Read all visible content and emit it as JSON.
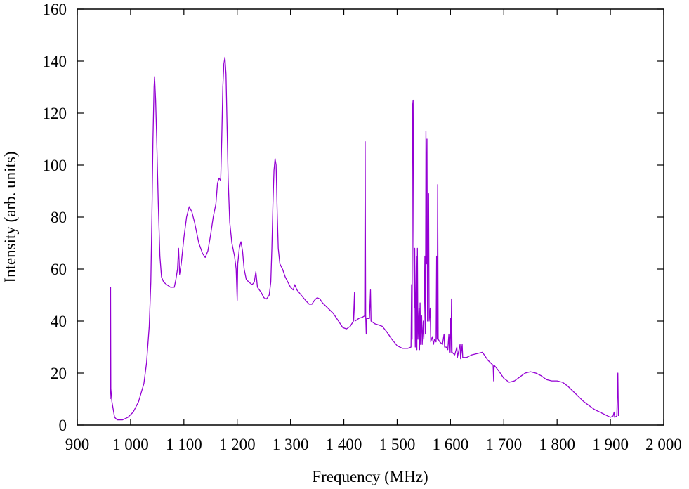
{
  "chart_data": {
    "type": "line",
    "xlabel": "Frequency (MHz)",
    "ylabel": "Intensity (arb. units)",
    "color": "#9400d3",
    "xlim": [
      900,
      2000
    ],
    "ylim": [
      0,
      160
    ],
    "xticks": [
      900,
      {
        "value": 1000,
        "label": "1 000"
      },
      {
        "value": 1100,
        "label": "1 100"
      },
      {
        "value": 1200,
        "label": "1 200"
      },
      {
        "value": 1300,
        "label": "1 300"
      },
      {
        "value": 1400,
        "label": "1 400"
      },
      {
        "value": 1500,
        "label": "1 500"
      },
      {
        "value": 1600,
        "label": "1 600"
      },
      {
        "value": 1700,
        "label": "1 700"
      },
      {
        "value": 1800,
        "label": "1 800"
      },
      {
        "value": 1900,
        "label": "1 900"
      },
      {
        "value": 2000,
        "label": "2 000"
      }
    ],
    "yticks": [
      0,
      20,
      40,
      60,
      80,
      100,
      120,
      140,
      160
    ],
    "x": [
      962,
      962.5,
      963,
      965,
      970,
      975,
      985,
      995,
      1005,
      1015,
      1025,
      1030,
      1035,
      1038,
      1040,
      1042,
      1044,
      1045,
      1047,
      1049,
      1052,
      1055,
      1058,
      1062,
      1068,
      1075,
      1082,
      1085,
      1088,
      1090,
      1092,
      1095,
      1100,
      1105,
      1110,
      1115,
      1120,
      1128,
      1135,
      1140,
      1145,
      1150,
      1155,
      1160,
      1163,
      1166,
      1169,
      1171,
      1173,
      1175,
      1177,
      1179,
      1181,
      1183,
      1186,
      1190,
      1195,
      1198,
      1200,
      1201,
      1204,
      1207,
      1210,
      1213,
      1217,
      1222,
      1228,
      1232,
      1235,
      1238,
      1245,
      1250,
      1255,
      1260,
      1263,
      1265,
      1267,
      1269,
      1271,
      1273,
      1275,
      1277,
      1280,
      1285,
      1290,
      1295,
      1300,
      1305,
      1308,
      1312,
      1320,
      1328,
      1335,
      1340,
      1345,
      1350,
      1355,
      1360,
      1370,
      1380,
      1390,
      1398,
      1405,
      1412,
      1418,
      1420,
      1421,
      1428,
      1435,
      1439,
      1440,
      1441,
      1442,
      1443,
      1448,
      1450,
      1451,
      1458,
      1465,
      1472,
      1480,
      1490,
      1500,
      1510,
      1520,
      1526,
      1527,
      1528,
      1529,
      1530,
      1531,
      1532,
      1533,
      1534,
      1536,
      1537,
      1538,
      1539,
      1541,
      1542,
      1543,
      1544,
      1546,
      1547,
      1549,
      1550,
      1552,
      1553,
      1554,
      1555,
      1556,
      1557,
      1559,
      1560,
      1562,
      1563,
      1566,
      1568,
      1570,
      1573,
      1574,
      1575,
      1576,
      1577,
      1580,
      1585,
      1588,
      1589,
      1592,
      1595,
      1597,
      1598,
      1600,
      1601,
      1602,
      1603,
      1608,
      1612,
      1613,
      1618,
      1619,
      1622,
      1623,
      1630,
      1640,
      1650,
      1660,
      1670,
      1680,
      1681,
      1682,
      1690,
      1700,
      1710,
      1720,
      1730,
      1740,
      1750,
      1760,
      1770,
      1780,
      1790,
      1800,
      1810,
      1820,
      1830,
      1840,
      1850,
      1860,
      1870,
      1880,
      1890,
      1900,
      1905,
      1907,
      1908,
      1912,
      1914,
      1915
    ],
    "values": [
      10,
      53,
      14,
      9,
      3,
      2,
      2,
      3,
      5,
      9,
      16,
      24,
      38,
      55,
      80,
      110,
      130,
      134,
      125,
      110,
      85,
      65,
      57,
      55,
      54,
      53,
      53,
      56,
      60,
      68,
      58,
      62,
      72,
      80,
      84,
      82,
      78,
      70,
      66,
      64.5,
      67,
      73,
      80,
      85,
      93,
      95,
      94,
      110,
      130,
      139,
      141.5,
      135,
      115,
      95,
      78,
      70,
      65,
      60,
      48,
      62,
      68,
      70.5,
      67,
      60,
      56,
      55,
      54,
      55,
      59,
      53,
      51,
      49,
      48.5,
      50,
      55,
      68,
      85,
      98,
      102.5,
      100,
      82,
      68,
      62,
      60,
      57,
      55,
      53,
      52,
      54,
      52,
      50,
      48,
      46.5,
      46.5,
      48,
      49,
      48.5,
      47,
      45,
      43,
      40,
      37.5,
      37,
      38,
      40,
      51,
      40,
      41,
      41.5,
      42,
      109,
      42,
      35,
      41,
      41,
      52,
      40,
      39,
      38.5,
      38,
      36,
      33,
      30.5,
      29.5,
      29.5,
      30,
      54,
      33,
      123,
      125,
      75,
      45,
      68,
      30,
      65,
      29,
      68,
      33,
      45,
      29,
      47,
      31,
      42,
      31,
      40,
      33,
      65,
      35,
      113,
      62,
      110,
      40,
      89,
      40,
      45,
      32,
      34,
      31,
      33,
      32,
      65,
      33,
      92.5,
      33,
      32,
      31,
      35,
      30,
      30,
      29,
      35,
      28,
      41,
      28,
      48.5,
      28,
      27,
      30,
      26,
      31,
      25.5,
      31,
      26,
      26,
      27,
      27.5,
      28,
      25,
      23,
      17,
      23,
      21,
      18,
      16.5,
      17,
      18.5,
      20,
      20.5,
      20,
      19,
      17.5,
      17,
      17,
      16.5,
      15,
      13,
      11,
      9,
      7.5,
      6,
      5,
      4,
      3,
      3.5,
      5,
      3,
      3.5,
      20,
      3.5
    ]
  }
}
